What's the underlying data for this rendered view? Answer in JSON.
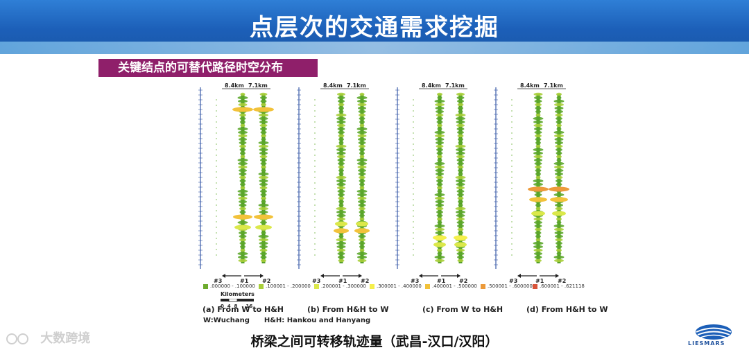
{
  "title": "点层次的交通需求挖掘",
  "section_label": "关键结点的可替代路径时空分布",
  "panels": [
    {
      "caption": "(a) From W to H&H",
      "km_left": "8.4km",
      "km_right": "7.1km",
      "col3": "#3",
      "col1": "#1",
      "col2": "#2"
    },
    {
      "caption": "(b) From H&H to W",
      "km_left": "8.4km",
      "km_right": "7.1km",
      "col3": "#3",
      "col1": "#1",
      "col2": "#2"
    },
    {
      "caption": "(c) From W to H&H",
      "km_left": "8.4km",
      "km_right": "7.1km",
      "col3": "#3",
      "col1": "#1",
      "col2": "#2"
    },
    {
      "caption": "(d) From H&H to W",
      "km_left": "8.4km",
      "km_right": "7.1km",
      "col3": "#3",
      "col1": "#1",
      "col2": "#2"
    }
  ],
  "legend": [
    {
      "label": ".000000 - .100000",
      "color": "#6dab2e"
    },
    {
      "label": ".100001 - .200000",
      "color": "#a8cf3a"
    },
    {
      "label": ".200001 - .300000",
      "color": "#dbe84a"
    },
    {
      "label": ".300001 - .400000",
      "color": "#f5ef4c"
    },
    {
      "label": ".400001 - .500000",
      "color": "#f2c23a"
    },
    {
      "label": ".500001 - .600000",
      "color": "#ec9a3a"
    },
    {
      "label": ".600001 - .621118",
      "color": "#d9543a"
    }
  ],
  "scale": {
    "title": "Kilometers",
    "ticks": "0  4  8     16"
  },
  "abbreviations": "W:Wuchang      H&H: Hankou and Hanyang",
  "bottom_caption": "桥梁之间可转移轨迹量（武昌-汉口/汉阳）",
  "watermark": "大数跨境",
  "logo_text": "LIESMARS",
  "colors": {
    "header": "#1c5fb8",
    "section_bg": "#8f1f6a",
    "green": "#4f9a26",
    "orange": "#d9543a"
  }
}
